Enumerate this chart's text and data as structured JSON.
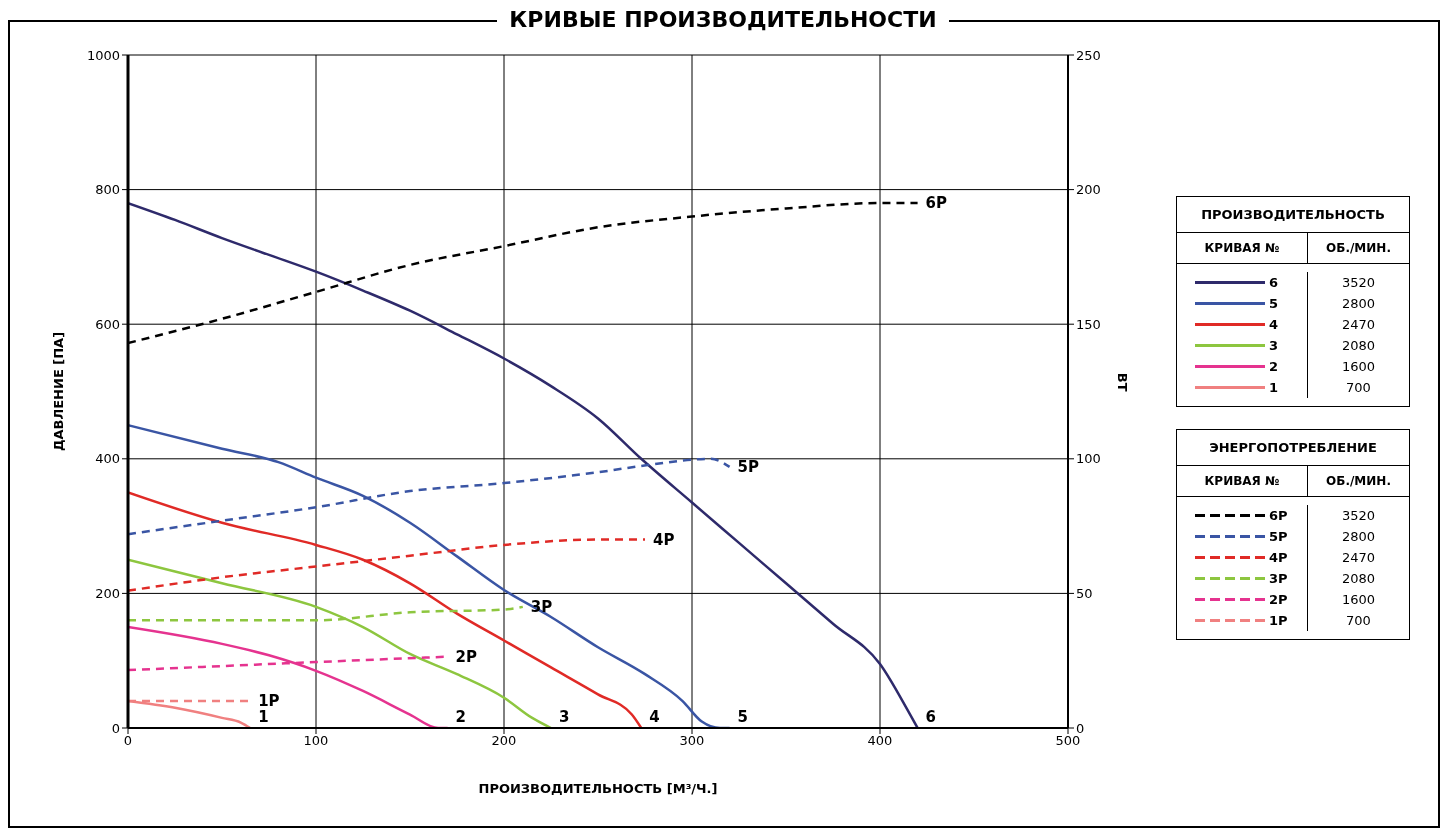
{
  "chart_data": {
    "type": "line",
    "title": "КРИВЫЕ ПРОИЗВОДИТЕЛЬНОСТИ",
    "xlabel": "ПРОИЗВОДИТЕЛЬНОСТЬ [М³/Ч.]",
    "ylabel": "ДАВЛЕНИЕ [ПА]",
    "y2label": "ВТ",
    "xlim": [
      0,
      500
    ],
    "xticks": [
      0,
      100,
      200,
      300,
      400,
      500
    ],
    "ylim": [
      0,
      1000
    ],
    "yticks": [
      0,
      200,
      400,
      600,
      800,
      1000
    ],
    "y2lim": [
      0,
      250
    ],
    "y2ticks": [
      0,
      50,
      100,
      150,
      200,
      250
    ],
    "grid": true,
    "legend": "right",
    "marker": "none",
    "series": [
      {
        "name": "6",
        "color": "#2e2a6b",
        "line_style": "solid",
        "x": [
          0,
          25,
          50,
          75,
          100,
          125,
          150,
          175,
          200,
          225,
          250,
          273,
          300,
          325,
          350,
          375,
          400,
          415,
          420
        ],
        "values": [
          780,
          755,
          728,
          703,
          678,
          650,
          620,
          585,
          549,
          508,
          460,
          400,
          335,
          275,
          215,
          155,
          95,
          25,
          0
        ]
      },
      {
        "name": "5",
        "color": "#3a55a4",
        "line_style": "solid",
        "x": [
          0,
          50,
          80,
          100,
          125,
          150,
          175,
          200,
          225,
          250,
          275,
          295,
          305,
          315,
          320
        ],
        "values": [
          450,
          415,
          395,
          372,
          345,
          305,
          255,
          205,
          165,
          120,
          80,
          40,
          10,
          0,
          0
        ]
      },
      {
        "name": "4",
        "color": "#e02a26",
        "line_style": "solid",
        "x": [
          0,
          50,
          100,
          125,
          150,
          175,
          200,
          225,
          250,
          268,
          273
        ],
        "values": [
          350,
          305,
          272,
          250,
          215,
          170,
          130,
          90,
          50,
          20,
          0
        ]
      },
      {
        "name": "3",
        "color": "#8dc63f",
        "line_style": "solid",
        "x": [
          0,
          50,
          100,
          125,
          150,
          175,
          200,
          215,
          225
        ],
        "values": [
          250,
          215,
          180,
          150,
          110,
          80,
          45,
          15,
          0
        ]
      },
      {
        "name": "2",
        "color": "#e5338f",
        "line_style": "solid",
        "x": [
          0,
          50,
          75,
          100,
          125,
          150,
          165,
          170
        ],
        "values": [
          150,
          125,
          108,
          85,
          55,
          20,
          0,
          0
        ]
      },
      {
        "name": "1",
        "color": "#f08080",
        "line_style": "solid",
        "x": [
          0,
          25,
          50,
          60,
          65
        ],
        "values": [
          40,
          30,
          15,
          8,
          0
        ]
      },
      {
        "name": "6P",
        "color": "#000000",
        "line_style": "dashed",
        "axis": "y2",
        "x": [
          0,
          50,
          100,
          150,
          200,
          250,
          300,
          350,
          400,
          420
        ],
        "values": [
          143,
          152,
          162,
          172,
          179,
          186,
          190,
          193,
          195,
          195
        ]
      },
      {
        "name": "5P",
        "color": "#3a55a4",
        "line_style": "dashed",
        "axis": "y2",
        "x": [
          0,
          50,
          100,
          150,
          200,
          250,
          280,
          310,
          320
        ],
        "values": [
          72,
          77,
          82,
          88,
          91,
          95,
          98,
          100,
          97
        ]
      },
      {
        "name": "4P",
        "color": "#e02a26",
        "line_style": "dashed",
        "axis": "y2",
        "x": [
          0,
          50,
          100,
          150,
          200,
          250,
          275
        ],
        "values": [
          51,
          56,
          60,
          64,
          68,
          70,
          70
        ]
      },
      {
        "name": "3P",
        "color": "#8dc63f",
        "line_style": "dashed",
        "axis": "y2",
        "x": [
          0,
          50,
          100,
          150,
          200,
          210
        ],
        "values": [
          40,
          40,
          40,
          43,
          44,
          45
        ]
      },
      {
        "name": "2P",
        "color": "#e5338f",
        "line_style": "dashed",
        "axis": "y2",
        "x": [
          0,
          50,
          100,
          170
        ],
        "values": [
          21.5,
          23,
          24.5,
          26.5
        ]
      },
      {
        "name": "1P",
        "color": "#f08080",
        "line_style": "dashed",
        "axis": "y2",
        "x": [
          0,
          30,
          65
        ],
        "values": [
          10,
          10,
          10
        ]
      }
    ],
    "annotations": [
      "ПРОИЗВОДИТЕЛЬНОСТЬ",
      "КРИВАЯ №",
      "ОБ./МИН.",
      "3520",
      "2800",
      "2470",
      "2080",
      "1600",
      "700",
      "ЭНЕРГОПОТРЕБЛЕНИЕ",
      "КРИВАЯ №",
      "ОБ./МИН.",
      "3520",
      "2800",
      "2470",
      "2080",
      "1600",
      "700"
    ]
  }
}
